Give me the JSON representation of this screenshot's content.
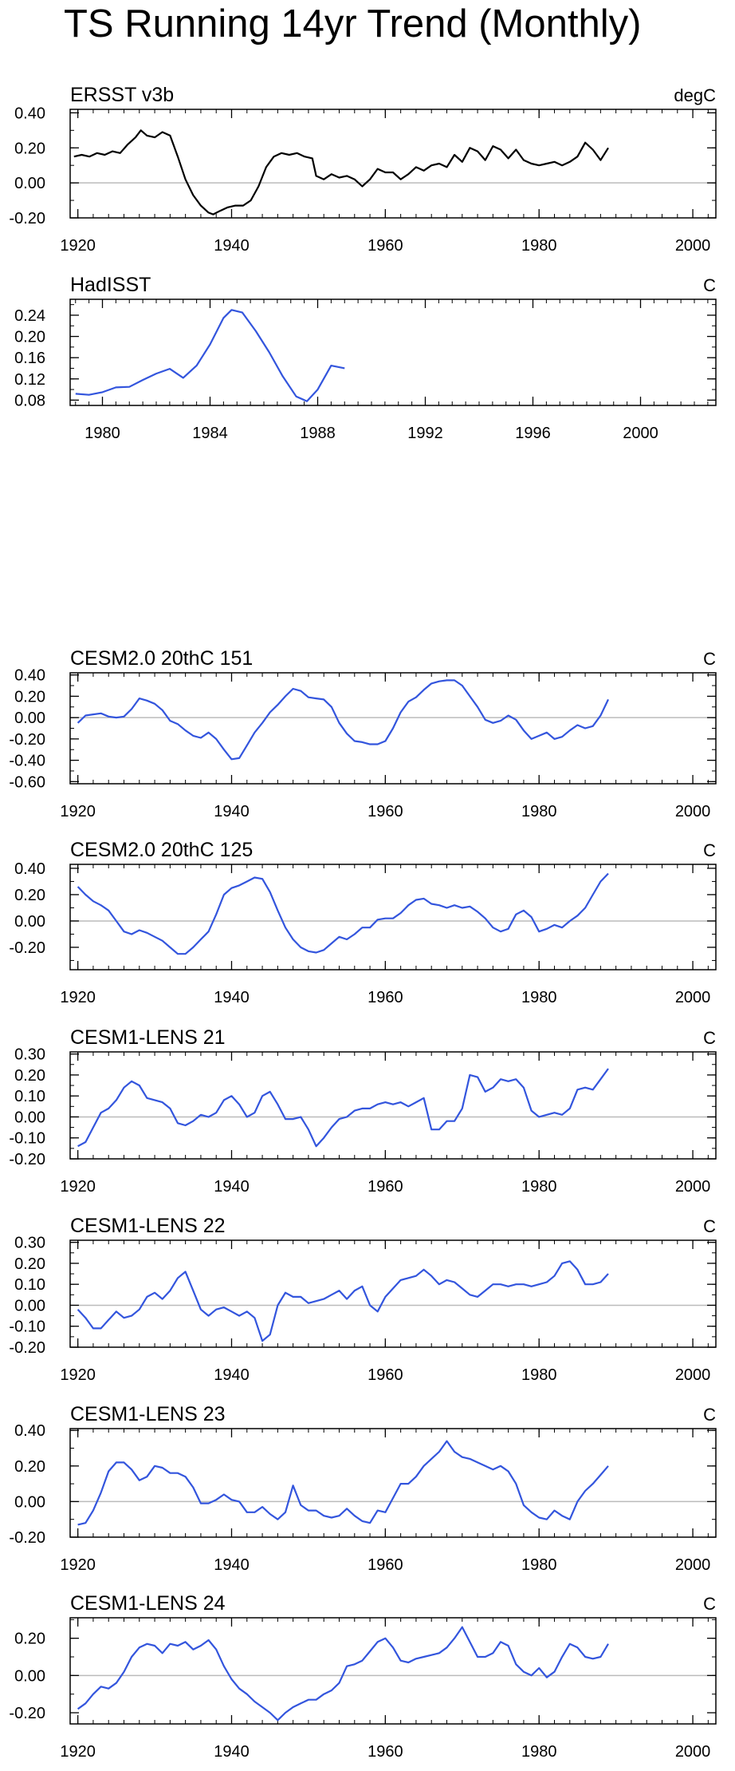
{
  "title": "TS Running 14yr Trend (Monthly)",
  "chart_data": [
    {
      "type": "line",
      "title": "ERSST v3b",
      "units": "degC",
      "series_color": "#000000",
      "xlim": [
        1919,
        2003
      ],
      "ylim": [
        -0.2,
        0.42
      ],
      "xticks": [
        1920,
        1940,
        1960,
        1980,
        2000
      ],
      "yticks": [
        -0.2,
        0.0,
        0.2,
        0.4
      ],
      "ytick_labels": [
        "-0.20",
        "0.00",
        "0.20",
        "0.40"
      ],
      "x": [
        1919.5,
        1920.5,
        1921.5,
        1922.5,
        1923.5,
        1924.5,
        1925.5,
        1926.5,
        1927.5,
        1928.2,
        1929,
        1930,
        1931,
        1932,
        1933,
        1934,
        1935,
        1936,
        1937,
        1937.6,
        1938.5,
        1939.5,
        1940.5,
        1941.5,
        1942.5,
        1943.5,
        1944.5,
        1945.5,
        1946.5,
        1947.5,
        1948.5,
        1949.5,
        1950.5,
        1951,
        1952,
        1953,
        1954,
        1955,
        1956,
        1957,
        1958,
        1959,
        1960,
        1961,
        1962,
        1963,
        1964,
        1965,
        1966,
        1967,
        1968,
        1969,
        1970,
        1971,
        1972,
        1973,
        1974,
        1975,
        1976,
        1977,
        1978,
        1979,
        1980,
        1981,
        1982,
        1983,
        1984,
        1985,
        1986,
        1987,
        1988,
        1989
      ],
      "y": [
        0.15,
        0.16,
        0.15,
        0.17,
        0.16,
        0.18,
        0.17,
        0.22,
        0.26,
        0.3,
        0.27,
        0.26,
        0.29,
        0.27,
        0.15,
        0.02,
        -0.07,
        -0.13,
        -0.17,
        -0.18,
        -0.16,
        -0.14,
        -0.13,
        -0.13,
        -0.1,
        -0.02,
        0.09,
        0.15,
        0.17,
        0.16,
        0.17,
        0.15,
        0.14,
        0.04,
        0.02,
        0.05,
        0.03,
        0.04,
        0.02,
        -0.02,
        0.02,
        0.08,
        0.06,
        0.06,
        0.02,
        0.05,
        0.09,
        0.07,
        0.1,
        0.11,
        0.09,
        0.16,
        0.12,
        0.2,
        0.18,
        0.13,
        0.21,
        0.19,
        0.14,
        0.19,
        0.13,
        0.11,
        0.1,
        0.11,
        0.12,
        0.1,
        0.12,
        0.15,
        0.23,
        0.19,
        0.13,
        0.2
      ]
    },
    {
      "type": "line",
      "title": "HadISST",
      "units": "C",
      "series_color": "#3355dd",
      "xlim": [
        1978.8,
        2002.8
      ],
      "ylim": [
        0.07,
        0.27
      ],
      "xticks": [
        1980,
        1984,
        1988,
        1992,
        1996,
        2000
      ],
      "yticks": [
        0.08,
        0.12,
        0.16,
        0.2,
        0.24
      ],
      "ytick_labels": [
        "0.08",
        "0.12",
        "0.16",
        "0.20",
        "0.24"
      ],
      "x": [
        1979,
        1979.5,
        1980,
        1980.5,
        1981,
        1981.5,
        1982,
        1982.5,
        1983,
        1983.5,
        1984,
        1984.5,
        1984.8,
        1985.2,
        1985.7,
        1986.2,
        1986.7,
        1987.2,
        1987.6,
        1988,
        1988.5,
        1989
      ],
      "y": [
        0.092,
        0.09,
        0.095,
        0.104,
        0.105,
        0.118,
        0.13,
        0.139,
        0.122,
        0.145,
        0.185,
        0.235,
        0.25,
        0.245,
        0.21,
        0.17,
        0.125,
        0.087,
        0.078,
        0.1,
        0.145,
        0.14
      ]
    },
    {
      "type": "line",
      "title": "CESM2.0 20thC 151",
      "units": "C",
      "series_color": "#3355dd",
      "xlim": [
        1919,
        2003
      ],
      "ylim": [
        -0.62,
        0.42
      ],
      "xticks": [
        1920,
        1940,
        1960,
        1980,
        2000
      ],
      "yticks": [
        -0.6,
        -0.4,
        -0.2,
        0.0,
        0.2,
        0.4
      ],
      "ytick_labels": [
        "-0.60",
        "-0.40",
        "-0.20",
        "0.00",
        "0.20",
        "0.40"
      ],
      "x": [
        1920,
        1921,
        1922,
        1923,
        1924,
        1925,
        1926,
        1927,
        1928,
        1929,
        1930,
        1931,
        1932,
        1933,
        1934,
        1935,
        1936,
        1937,
        1938,
        1939,
        1940,
        1941,
        1942,
        1943,
        1944,
        1945,
        1946,
        1947,
        1948,
        1949,
        1950,
        1951,
        1952,
        1953,
        1954,
        1955,
        1956,
        1957,
        1958,
        1959,
        1960,
        1961,
        1962,
        1963,
        1964,
        1965,
        1966,
        1967,
        1968,
        1969,
        1970,
        1971,
        1972,
        1973,
        1974,
        1975,
        1976,
        1977,
        1978,
        1979,
        1980,
        1981,
        1982,
        1983,
        1984,
        1985,
        1986,
        1987,
        1988,
        1989
      ],
      "y": [
        -0.05,
        0.02,
        0.03,
        0.04,
        0.01,
        0.0,
        0.01,
        0.08,
        0.18,
        0.16,
        0.13,
        0.07,
        -0.03,
        -0.06,
        -0.12,
        -0.17,
        -0.19,
        -0.14,
        -0.2,
        -0.3,
        -0.39,
        -0.38,
        -0.26,
        -0.14,
        -0.05,
        0.05,
        0.12,
        0.2,
        0.27,
        0.25,
        0.19,
        0.18,
        0.17,
        0.1,
        -0.05,
        -0.15,
        -0.22,
        -0.23,
        -0.25,
        -0.25,
        -0.22,
        -0.1,
        0.05,
        0.15,
        0.19,
        0.26,
        0.32,
        0.34,
        0.35,
        0.35,
        0.3,
        0.2,
        0.1,
        -0.02,
        -0.05,
        -0.03,
        0.02,
        -0.02,
        -0.12,
        -0.2,
        -0.17,
        -0.14,
        -0.2,
        -0.18,
        -0.12,
        -0.07,
        -0.1,
        -0.08,
        0.02,
        0.17
      ]
    },
    {
      "type": "line",
      "title": "CESM2.0 20thC 125",
      "units": "C",
      "series_color": "#3355dd",
      "xlim": [
        1919,
        2003
      ],
      "ylim": [
        -0.37,
        0.43
      ],
      "xticks": [
        1920,
        1940,
        1960,
        1980,
        2000
      ],
      "yticks": [
        -0.2,
        0.0,
        0.2,
        0.4
      ],
      "ytick_labels": [
        "-0.20",
        "0.00",
        "0.20",
        "0.40"
      ],
      "x": [
        1920,
        1921,
        1922,
        1923,
        1924,
        1925,
        1926,
        1927,
        1928,
        1929,
        1930,
        1931,
        1932,
        1933,
        1934,
        1935,
        1936,
        1937,
        1938,
        1939,
        1940,
        1941,
        1942,
        1943,
        1944,
        1945,
        1946,
        1947,
        1948,
        1949,
        1950,
        1951,
        1952,
        1953,
        1954,
        1955,
        1956,
        1957,
        1958,
        1959,
        1960,
        1961,
        1962,
        1963,
        1964,
        1965,
        1966,
        1967,
        1968,
        1969,
        1970,
        1971,
        1972,
        1973,
        1974,
        1975,
        1976,
        1977,
        1978,
        1979,
        1980,
        1981,
        1982,
        1983,
        1984,
        1985,
        1986,
        1987,
        1988,
        1989
      ],
      "y": [
        0.26,
        0.2,
        0.15,
        0.12,
        0.08,
        0.0,
        -0.08,
        -0.1,
        -0.07,
        -0.09,
        -0.12,
        -0.15,
        -0.2,
        -0.25,
        -0.25,
        -0.2,
        -0.14,
        -0.08,
        0.05,
        0.2,
        0.25,
        0.27,
        0.3,
        0.33,
        0.32,
        0.22,
        0.08,
        -0.05,
        -0.14,
        -0.2,
        -0.23,
        -0.24,
        -0.22,
        -0.17,
        -0.12,
        -0.14,
        -0.1,
        -0.05,
        -0.05,
        0.01,
        0.02,
        0.02,
        0.06,
        0.12,
        0.16,
        0.17,
        0.13,
        0.12,
        0.1,
        0.12,
        0.1,
        0.11,
        0.07,
        0.02,
        -0.05,
        -0.08,
        -0.06,
        0.05,
        0.08,
        0.03,
        -0.08,
        -0.06,
        -0.03,
        -0.05,
        0.0,
        0.04,
        0.1,
        0.2,
        0.3,
        0.36
      ]
    },
    {
      "type": "line",
      "title": "CESM1-LENS 21",
      "units": "C",
      "series_color": "#3355dd",
      "xlim": [
        1919,
        2003
      ],
      "ylim": [
        -0.2,
        0.31
      ],
      "xticks": [
        1920,
        1940,
        1960,
        1980,
        2000
      ],
      "yticks": [
        -0.2,
        -0.1,
        0.0,
        0.1,
        0.2,
        0.3
      ],
      "ytick_labels": [
        "-0.20",
        "-0.10",
        "0.00",
        "0.10",
        "0.20",
        "0.30"
      ],
      "x": [
        1920,
        1921,
        1922,
        1923,
        1924,
        1925,
        1926,
        1927,
        1928,
        1929,
        1930,
        1931,
        1932,
        1933,
        1934,
        1935,
        1936,
        1937,
        1938,
        1939,
        1940,
        1941,
        1942,
        1943,
        1944,
        1945,
        1946,
        1947,
        1948,
        1949,
        1950,
        1951,
        1952,
        1953,
        1954,
        1955,
        1956,
        1957,
        1958,
        1959,
        1960,
        1961,
        1962,
        1963,
        1964,
        1965,
        1966,
        1967,
        1968,
        1969,
        1970,
        1971,
        1972,
        1973,
        1974,
        1975,
        1976,
        1977,
        1978,
        1979,
        1980,
        1981,
        1982,
        1983,
        1984,
        1985,
        1986,
        1987,
        1988,
        1989
      ],
      "y": [
        -0.14,
        -0.12,
        -0.05,
        0.02,
        0.04,
        0.08,
        0.14,
        0.17,
        0.15,
        0.09,
        0.08,
        0.07,
        0.04,
        -0.03,
        -0.04,
        -0.02,
        0.01,
        0.0,
        0.02,
        0.08,
        0.1,
        0.06,
        0.0,
        0.02,
        0.1,
        0.12,
        0.06,
        -0.01,
        -0.01,
        0.0,
        -0.06,
        -0.14,
        -0.1,
        -0.05,
        -0.01,
        0.0,
        0.03,
        0.04,
        0.04,
        0.06,
        0.07,
        0.06,
        0.07,
        0.05,
        0.07,
        0.09,
        -0.06,
        -0.06,
        -0.02,
        -0.02,
        0.04,
        0.2,
        0.19,
        0.12,
        0.14,
        0.18,
        0.17,
        0.18,
        0.14,
        0.03,
        0.0,
        0.01,
        0.02,
        0.01,
        0.04,
        0.13,
        0.14,
        0.13,
        0.18,
        0.23
      ]
    },
    {
      "type": "line",
      "title": "CESM1-LENS 22",
      "units": "C",
      "series_color": "#3355dd",
      "xlim": [
        1919,
        2003
      ],
      "ylim": [
        -0.2,
        0.31
      ],
      "xticks": [
        1920,
        1940,
        1960,
        1980,
        2000
      ],
      "yticks": [
        -0.2,
        -0.1,
        0.0,
        0.1,
        0.2,
        0.3
      ],
      "ytick_labels": [
        "-0.20",
        "-0.10",
        "0.00",
        "0.10",
        "0.20",
        "0.30"
      ],
      "x": [
        1920,
        1921,
        1922,
        1923,
        1924,
        1925,
        1926,
        1927,
        1928,
        1929,
        1930,
        1931,
        1932,
        1933,
        1934,
        1935,
        1936,
        1937,
        1938,
        1939,
        1940,
        1941,
        1942,
        1943,
        1944,
        1945,
        1946,
        1947,
        1948,
        1949,
        1950,
        1951,
        1952,
        1953,
        1954,
        1955,
        1956,
        1957,
        1958,
        1959,
        1960,
        1961,
        1962,
        1963,
        1964,
        1965,
        1966,
        1967,
        1968,
        1969,
        1970,
        1971,
        1972,
        1973,
        1974,
        1975,
        1976,
        1977,
        1978,
        1979,
        1980,
        1981,
        1982,
        1983,
        1984,
        1985,
        1986,
        1987,
        1988,
        1989
      ],
      "y": [
        -0.02,
        -0.06,
        -0.11,
        -0.11,
        -0.07,
        -0.03,
        -0.06,
        -0.05,
        -0.02,
        0.04,
        0.06,
        0.03,
        0.07,
        0.13,
        0.16,
        0.07,
        -0.02,
        -0.05,
        -0.02,
        -0.01,
        -0.03,
        -0.05,
        -0.03,
        -0.06,
        -0.17,
        -0.14,
        0.0,
        0.06,
        0.04,
        0.04,
        0.01,
        0.02,
        0.03,
        0.05,
        0.07,
        0.03,
        0.07,
        0.09,
        0.0,
        -0.03,
        0.04,
        0.08,
        0.12,
        0.13,
        0.14,
        0.17,
        0.14,
        0.1,
        0.12,
        0.11,
        0.08,
        0.05,
        0.04,
        0.07,
        0.1,
        0.1,
        0.09,
        0.1,
        0.1,
        0.09,
        0.1,
        0.11,
        0.14,
        0.2,
        0.21,
        0.17,
        0.1,
        0.1,
        0.11,
        0.15
      ]
    },
    {
      "type": "line",
      "title": "CESM1-LENS 23",
      "units": "C",
      "series_color": "#3355dd",
      "xlim": [
        1919,
        2003
      ],
      "ylim": [
        -0.2,
        0.41
      ],
      "xticks": [
        1920,
        1940,
        1960,
        1980,
        2000
      ],
      "yticks": [
        -0.2,
        0.0,
        0.2,
        0.4
      ],
      "ytick_labels": [
        "-0.20",
        "0.00",
        "0.20",
        "0.40"
      ],
      "x": [
        1920,
        1921,
        1922,
        1923,
        1924,
        1925,
        1926,
        1927,
        1928,
        1929,
        1930,
        1931,
        1932,
        1933,
        1934,
        1935,
        1936,
        1937,
        1938,
        1939,
        1940,
        1941,
        1942,
        1943,
        1944,
        1945,
        1946,
        1947,
        1948,
        1949,
        1950,
        1951,
        1952,
        1953,
        1954,
        1955,
        1956,
        1957,
        1958,
        1959,
        1960,
        1961,
        1962,
        1963,
        1964,
        1965,
        1966,
        1967,
        1968,
        1969,
        1970,
        1971,
        1972,
        1973,
        1974,
        1975,
        1976,
        1977,
        1978,
        1979,
        1980,
        1981,
        1982,
        1983,
        1984,
        1985,
        1986,
        1987,
        1988,
        1989
      ],
      "y": [
        -0.13,
        -0.12,
        -0.05,
        0.05,
        0.17,
        0.22,
        0.22,
        0.18,
        0.12,
        0.14,
        0.2,
        0.19,
        0.16,
        0.16,
        0.14,
        0.08,
        -0.01,
        -0.01,
        0.01,
        0.04,
        0.01,
        0.0,
        -0.06,
        -0.06,
        -0.03,
        -0.07,
        -0.1,
        -0.06,
        0.09,
        -0.02,
        -0.05,
        -0.05,
        -0.08,
        -0.09,
        -0.08,
        -0.04,
        -0.08,
        -0.11,
        -0.12,
        -0.05,
        -0.06,
        0.02,
        0.1,
        0.1,
        0.14,
        0.2,
        0.24,
        0.28,
        0.34,
        0.28,
        0.25,
        0.24,
        0.22,
        0.2,
        0.18,
        0.2,
        0.17,
        0.1,
        -0.02,
        -0.06,
        -0.09,
        -0.1,
        -0.05,
        -0.08,
        -0.1,
        0.0,
        0.06,
        0.1,
        0.15,
        0.2
      ]
    },
    {
      "type": "line",
      "title": "CESM1-LENS 24",
      "units": "C",
      "series_color": "#3355dd",
      "xlim": [
        1919,
        2003
      ],
      "ylim": [
        -0.26,
        0.31
      ],
      "xticks": [
        1920,
        1940,
        1960,
        1980,
        2000
      ],
      "yticks": [
        -0.2,
        0.0,
        0.2
      ],
      "ytick_labels": [
        "-0.20",
        "0.00",
        "0.20"
      ],
      "x": [
        1920,
        1921,
        1922,
        1923,
        1924,
        1925,
        1926,
        1927,
        1928,
        1929,
        1930,
        1931,
        1932,
        1933,
        1934,
        1935,
        1936,
        1937,
        1938,
        1939,
        1940,
        1941,
        1942,
        1943,
        1944,
        1945,
        1946,
        1947,
        1948,
        1949,
        1950,
        1951,
        1952,
        1953,
        1954,
        1955,
        1956,
        1957,
        1958,
        1959,
        1960,
        1961,
        1962,
        1963,
        1964,
        1965,
        1966,
        1967,
        1968,
        1969,
        1970,
        1971,
        1972,
        1973,
        1974,
        1975,
        1976,
        1977,
        1978,
        1979,
        1980,
        1981,
        1982,
        1983,
        1984,
        1985,
        1986,
        1987,
        1988,
        1989
      ],
      "y": [
        -0.18,
        -0.15,
        -0.1,
        -0.06,
        -0.07,
        -0.04,
        0.02,
        0.1,
        0.15,
        0.17,
        0.16,
        0.12,
        0.17,
        0.16,
        0.18,
        0.14,
        0.16,
        0.19,
        0.14,
        0.05,
        -0.02,
        -0.07,
        -0.1,
        -0.14,
        -0.17,
        -0.2,
        -0.24,
        -0.2,
        -0.17,
        -0.15,
        -0.13,
        -0.13,
        -0.1,
        -0.08,
        -0.04,
        0.05,
        0.06,
        0.08,
        0.13,
        0.18,
        0.2,
        0.15,
        0.08,
        0.07,
        0.09,
        0.1,
        0.11,
        0.12,
        0.15,
        0.2,
        0.26,
        0.18,
        0.1,
        0.1,
        0.12,
        0.18,
        0.16,
        0.06,
        0.02,
        0.0,
        0.04,
        -0.01,
        0.02,
        0.1,
        0.17,
        0.15,
        0.1,
        0.09,
        0.1,
        0.17
      ]
    }
  ]
}
